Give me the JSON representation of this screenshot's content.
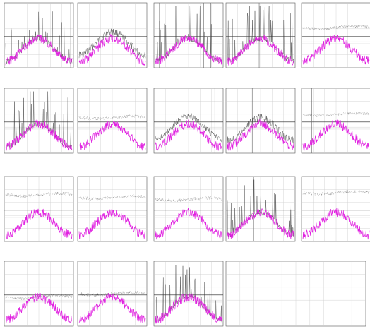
{
  "figure": {
    "rows": 4,
    "cols": 5,
    "colors": {
      "primary_series": "#e020e0",
      "secondary_series": "#333333",
      "grid": "#cccccc",
      "frame": "#555555"
    }
  },
  "chart_data": [
    {
      "type": "line",
      "panel": 1,
      "secondary_style": "spiky",
      "secondary_level": 0.55,
      "vlines": [
        0.96
      ],
      "title": "",
      "xlabel": "",
      "ylabel": ""
    },
    {
      "type": "line",
      "panel": 2,
      "secondary_style": "mild",
      "secondary_level": 0.45,
      "vlines": [],
      "title": "",
      "xlabel": "",
      "ylabel": ""
    },
    {
      "type": "line",
      "panel": 3,
      "secondary_style": "spiky",
      "secondary_level": 0.7,
      "vlines": [
        0.08,
        0.72,
        0.82
      ],
      "title": "",
      "xlabel": "",
      "ylabel": ""
    },
    {
      "type": "line",
      "panel": 4,
      "secondary_style": "spiky",
      "secondary_level": 0.8,
      "vlines": [
        0.48
      ],
      "title": "",
      "xlabel": "",
      "ylabel": ""
    },
    {
      "type": "line",
      "panel": 5,
      "secondary_style": "dotted",
      "secondary_level": 0.62,
      "vlines": [],
      "title": "",
      "xlabel": "",
      "ylabel": ""
    },
    {
      "type": "line",
      "panel": 6,
      "secondary_style": "spiky",
      "secondary_level": 0.75,
      "vlines": [],
      "title": "",
      "xlabel": "",
      "ylabel": ""
    },
    {
      "type": "line",
      "panel": 7,
      "secondary_style": "dotted",
      "secondary_level": 0.55,
      "vlines": [],
      "title": "",
      "xlabel": "",
      "ylabel": ""
    },
    {
      "type": "line",
      "panel": 8,
      "secondary_style": "band",
      "secondary_level": 0.3,
      "vlines": [
        0.78,
        0.88
      ],
      "title": "",
      "xlabel": "",
      "ylabel": ""
    },
    {
      "type": "line",
      "panel": 9,
      "secondary_style": "mild",
      "secondary_level": 0.35,
      "vlines": [
        0.38
      ],
      "title": "",
      "xlabel": "",
      "ylabel": ""
    },
    {
      "type": "line",
      "panel": 10,
      "secondary_style": "dotted",
      "secondary_level": 0.6,
      "vlines": [
        0.15
      ],
      "title": "",
      "xlabel": "",
      "ylabel": ""
    },
    {
      "type": "line",
      "panel": 11,
      "secondary_style": "dotted",
      "secondary_level": 0.72,
      "vlines": [],
      "title": "",
      "xlabel": "",
      "ylabel": ""
    },
    {
      "type": "line",
      "panel": 12,
      "secondary_style": "dotted",
      "secondary_level": 0.68,
      "vlines": [],
      "title": "",
      "xlabel": "",
      "ylabel": ""
    },
    {
      "type": "line",
      "panel": 13,
      "secondary_style": "dotted",
      "secondary_level": 0.65,
      "vlines": [],
      "title": "",
      "xlabel": "",
      "ylabel": ""
    },
    {
      "type": "line",
      "panel": 14,
      "secondary_style": "spiky",
      "secondary_level": 0.6,
      "vlines": [
        0.4
      ],
      "title": "",
      "xlabel": "",
      "ylabel": ""
    },
    {
      "type": "line",
      "panel": 15,
      "secondary_style": "dotted",
      "secondary_level": 0.75,
      "vlines": [],
      "title": "",
      "xlabel": "",
      "ylabel": ""
    },
    {
      "type": "line",
      "panel": 16,
      "secondary_style": "dotted",
      "secondary_level": 0.45,
      "vlines": [],
      "title": "",
      "xlabel": "",
      "ylabel": ""
    },
    {
      "type": "line",
      "panel": 17,
      "secondary_style": "dotted",
      "secondary_level": 0.5,
      "vlines": [],
      "title": "",
      "xlabel": "",
      "ylabel": ""
    },
    {
      "type": "line",
      "panel": 18,
      "secondary_style": "spiky",
      "secondary_level": 0.6,
      "vlines": [
        0.85
      ],
      "title": "",
      "xlabel": "",
      "ylabel": ""
    },
    {
      "type": "empty",
      "panel": 19
    },
    {
      "type": "empty",
      "panel": 20
    }
  ]
}
